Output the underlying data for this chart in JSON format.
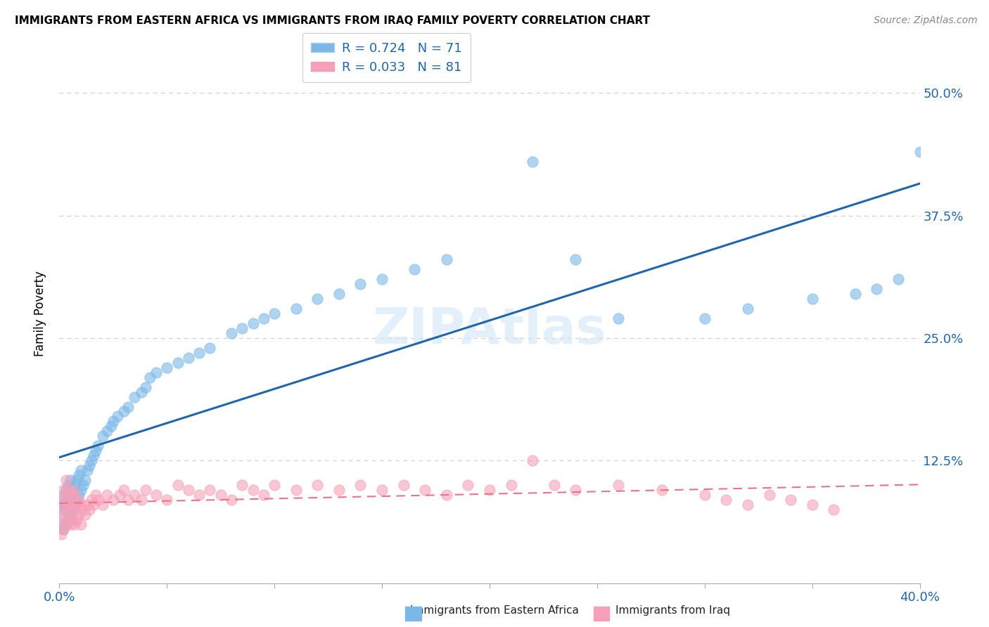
{
  "title": "IMMIGRANTS FROM EASTERN AFRICA VS IMMIGRANTS FROM IRAQ FAMILY POVERTY CORRELATION CHART",
  "source": "Source: ZipAtlas.com",
  "ylabel": "Family Poverty",
  "xlim": [
    0.0,
    0.4
  ],
  "ylim": [
    0.0,
    0.55
  ],
  "yticks": [
    0.0,
    0.125,
    0.25,
    0.375,
    0.5
  ],
  "yticklabels": [
    "",
    "12.5%",
    "25.0%",
    "37.5%",
    "50.0%"
  ],
  "R_eastern": 0.724,
  "N_eastern": 71,
  "R_iraq": 0.033,
  "N_iraq": 81,
  "blue_color": "#7bb8e8",
  "pink_color": "#f5a0b8",
  "blue_line_color": "#2166ac",
  "pink_line_color": "#e8738a",
  "legend_label_eastern": "Immigrants from Eastern Africa",
  "legend_label_iraq": "Immigrants from Iraq",
  "watermark": "ZIPAtlas",
  "ea_x": [
    0.001,
    0.001,
    0.002,
    0.002,
    0.002,
    0.003,
    0.003,
    0.003,
    0.004,
    0.004,
    0.004,
    0.005,
    0.005,
    0.005,
    0.006,
    0.006,
    0.007,
    0.007,
    0.008,
    0.008,
    0.009,
    0.009,
    0.01,
    0.01,
    0.011,
    0.012,
    0.013,
    0.014,
    0.015,
    0.016,
    0.017,
    0.018,
    0.02,
    0.022,
    0.024,
    0.025,
    0.027,
    0.03,
    0.032,
    0.035,
    0.038,
    0.04,
    0.042,
    0.045,
    0.05,
    0.055,
    0.06,
    0.065,
    0.07,
    0.08,
    0.085,
    0.09,
    0.095,
    0.1,
    0.11,
    0.12,
    0.13,
    0.14,
    0.15,
    0.165,
    0.18,
    0.22,
    0.24,
    0.26,
    0.3,
    0.32,
    0.35,
    0.37,
    0.38,
    0.39,
    0.4
  ],
  "ea_y": [
    0.06,
    0.08,
    0.055,
    0.075,
    0.09,
    0.06,
    0.08,
    0.095,
    0.065,
    0.085,
    0.1,
    0.07,
    0.09,
    0.105,
    0.075,
    0.095,
    0.08,
    0.1,
    0.085,
    0.105,
    0.09,
    0.11,
    0.095,
    0.115,
    0.1,
    0.105,
    0.115,
    0.12,
    0.125,
    0.13,
    0.135,
    0.14,
    0.15,
    0.155,
    0.16,
    0.165,
    0.17,
    0.175,
    0.18,
    0.19,
    0.195,
    0.2,
    0.21,
    0.215,
    0.22,
    0.225,
    0.23,
    0.235,
    0.24,
    0.255,
    0.26,
    0.265,
    0.27,
    0.275,
    0.28,
    0.29,
    0.295,
    0.305,
    0.31,
    0.32,
    0.33,
    0.43,
    0.33,
    0.27,
    0.27,
    0.28,
    0.29,
    0.295,
    0.3,
    0.31,
    0.44
  ],
  "iq_x": [
    0.001,
    0.001,
    0.001,
    0.002,
    0.002,
    0.002,
    0.002,
    0.003,
    0.003,
    0.003,
    0.003,
    0.004,
    0.004,
    0.004,
    0.005,
    0.005,
    0.005,
    0.006,
    0.006,
    0.006,
    0.007,
    0.007,
    0.007,
    0.008,
    0.008,
    0.009,
    0.009,
    0.01,
    0.01,
    0.011,
    0.012,
    0.013,
    0.014,
    0.015,
    0.016,
    0.017,
    0.018,
    0.02,
    0.022,
    0.025,
    0.028,
    0.03,
    0.032,
    0.035,
    0.038,
    0.04,
    0.045,
    0.05,
    0.055,
    0.06,
    0.065,
    0.07,
    0.075,
    0.08,
    0.085,
    0.09,
    0.095,
    0.1,
    0.11,
    0.12,
    0.13,
    0.14,
    0.15,
    0.16,
    0.17,
    0.18,
    0.19,
    0.2,
    0.21,
    0.22,
    0.23,
    0.24,
    0.26,
    0.28,
    0.3,
    0.31,
    0.32,
    0.33,
    0.34,
    0.35,
    0.36
  ],
  "iq_y": [
    0.05,
    0.065,
    0.08,
    0.055,
    0.07,
    0.085,
    0.095,
    0.06,
    0.075,
    0.09,
    0.105,
    0.065,
    0.08,
    0.095,
    0.06,
    0.075,
    0.09,
    0.065,
    0.08,
    0.095,
    0.06,
    0.075,
    0.09,
    0.065,
    0.08,
    0.07,
    0.085,
    0.06,
    0.08,
    0.075,
    0.07,
    0.08,
    0.075,
    0.085,
    0.08,
    0.09,
    0.085,
    0.08,
    0.09,
    0.085,
    0.09,
    0.095,
    0.085,
    0.09,
    0.085,
    0.095,
    0.09,
    0.085,
    0.1,
    0.095,
    0.09,
    0.095,
    0.09,
    0.085,
    0.1,
    0.095,
    0.09,
    0.1,
    0.095,
    0.1,
    0.095,
    0.1,
    0.095,
    0.1,
    0.095,
    0.09,
    0.1,
    0.095,
    0.1,
    0.125,
    0.1,
    0.095,
    0.1,
    0.095,
    0.09,
    0.085,
    0.08,
    0.09,
    0.085,
    0.08,
    0.075
  ]
}
